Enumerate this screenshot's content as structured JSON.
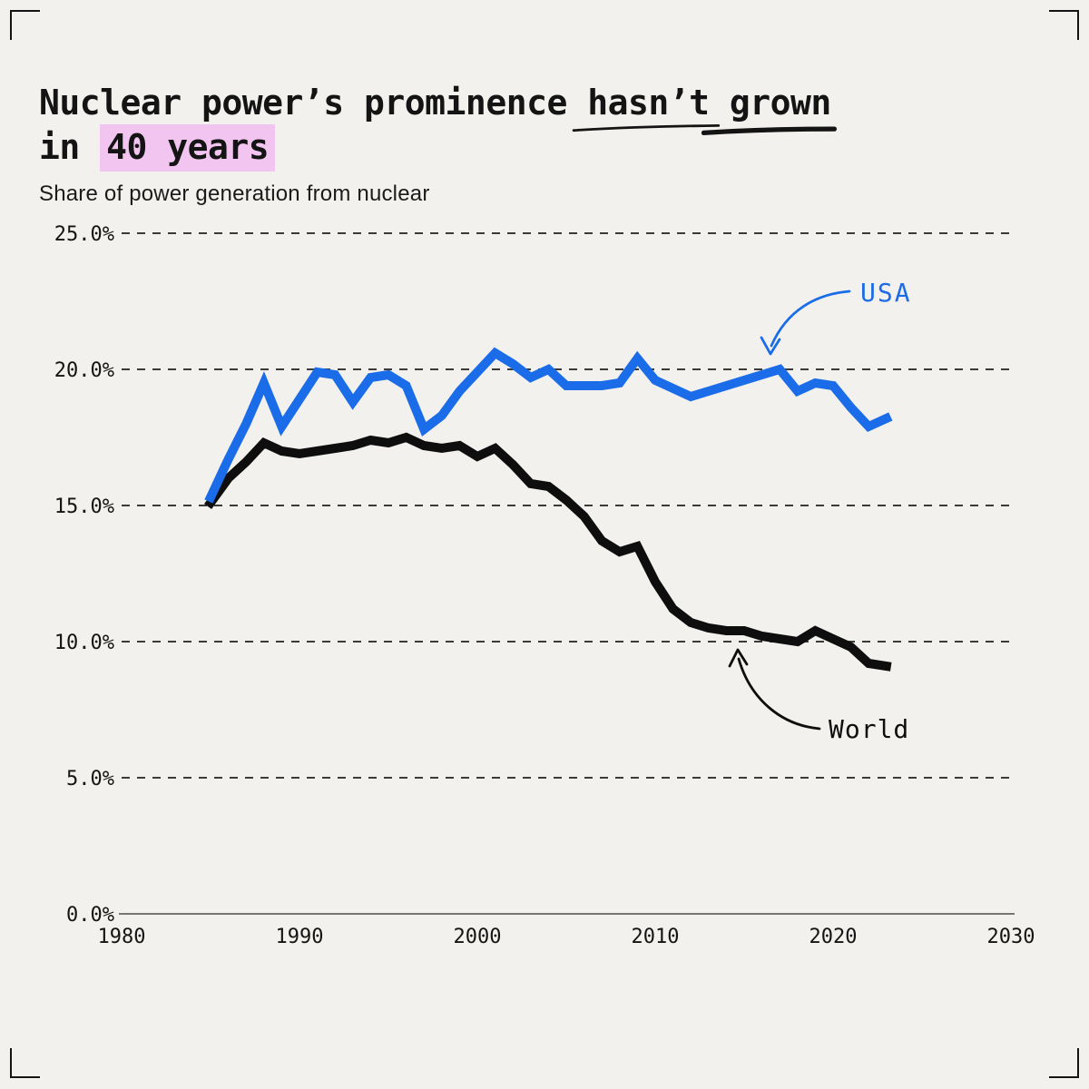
{
  "title": {
    "line1_pre": "Nuclear power’s prominence ",
    "line1_emph": "hasn’t grown",
    "line2_pre": "in ",
    "line2_highlight": "40 years"
  },
  "subtitle": "Share of power generation from nuclear",
  "annotations": {
    "usa_label": "USA",
    "world_label": "World"
  },
  "colors": {
    "background": "#f2f1ed",
    "text": "#141414",
    "usa_blue": "#1a6ce8",
    "world_black": "#0e0e0e",
    "grid": "#3a3a3a",
    "highlight_pink": "#f1c5ef",
    "axis": "#4d4d4d"
  },
  "chart_data": {
    "type": "line",
    "title": "Nuclear power’s prominence hasn’t grown in 40 years",
    "subtitle": "Share of power generation from nuclear",
    "xlabel": "",
    "ylabel": "Share of power generation from nuclear (%)",
    "xlim": [
      1980,
      2030
    ],
    "ylim": [
      0,
      25
    ],
    "grid": "horizontal dashed gridlines, solid baseline at 0%",
    "legend": "inline arrow annotations (USA blue, World black)",
    "xticks": [
      {
        "value": 1980,
        "label": "1980"
      },
      {
        "value": 1990,
        "label": "1990"
      },
      {
        "value": 2000,
        "label": "2000"
      },
      {
        "value": 2010,
        "label": "2010"
      },
      {
        "value": 2020,
        "label": "2020"
      },
      {
        "value": 2030,
        "label": "2030"
      }
    ],
    "yticks": [
      {
        "value": 0,
        "label": "0.0%"
      },
      {
        "value": 5,
        "label": "5.0%"
      },
      {
        "value": 10,
        "label": "10.0%"
      },
      {
        "value": 15,
        "label": "15.0%"
      },
      {
        "value": 20,
        "label": "20.0%"
      },
      {
        "value": 25,
        "label": "25.0%"
      }
    ],
    "x": [
      1985,
      1986,
      1987,
      1988,
      1989,
      1990,
      1991,
      1992,
      1993,
      1994,
      1995,
      1996,
      1997,
      1998,
      1999,
      2000,
      2001,
      2002,
      2003,
      2004,
      2005,
      2006,
      2007,
      2008,
      2009,
      2010,
      2011,
      2012,
      2013,
      2014,
      2015,
      2016,
      2017,
      2018,
      2019,
      2020,
      2021,
      2022,
      2023
    ],
    "series": [
      {
        "name": "USA",
        "color": "#1a6ce8",
        "values": [
          15.3,
          16.7,
          18.0,
          19.5,
          17.9,
          18.9,
          19.9,
          19.8,
          18.8,
          19.7,
          19.8,
          19.4,
          17.8,
          18.3,
          19.2,
          19.9,
          20.6,
          20.2,
          19.7,
          20.0,
          19.4,
          19.4,
          19.4,
          19.5,
          20.4,
          19.6,
          19.3,
          19.0,
          19.2,
          19.4,
          19.6,
          19.8,
          20.0,
          19.2,
          19.5,
          19.4,
          18.6,
          17.9,
          18.2
        ]
      },
      {
        "name": "World",
        "color": "#0e0e0e",
        "values": [
          15.1,
          16.0,
          16.6,
          17.3,
          17.0,
          16.9,
          17.0,
          17.1,
          17.2,
          17.4,
          17.3,
          17.5,
          17.2,
          17.1,
          17.2,
          16.8,
          17.1,
          16.5,
          15.8,
          15.7,
          15.2,
          14.6,
          13.7,
          13.3,
          13.5,
          12.2,
          11.2,
          10.7,
          10.5,
          10.4,
          10.4,
          10.2,
          10.1,
          10.0,
          10.4,
          10.1,
          9.8,
          9.2,
          9.1
        ]
      }
    ]
  }
}
